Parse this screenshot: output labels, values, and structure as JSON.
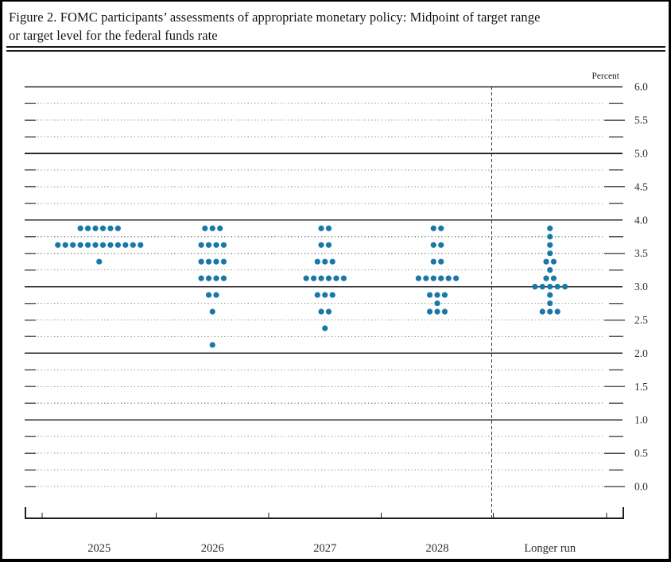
{
  "title": {
    "line1": "Figure 2. FOMC participants’ assessments of appropriate monetary policy: Midpoint of target range",
    "line2": "or target level for the federal funds rate"
  },
  "chart_data": {
    "type": "scatter",
    "subtype": "fomc-dot-plot",
    "title": "Figure 2. FOMC participants’ assessments of appropriate monetary policy: Midpoint of target range or target level for the federal funds rate",
    "unit_label": "Percent",
    "xlabel": "",
    "ylabel": "Percent",
    "ylim": [
      0.0,
      6.0
    ],
    "y_label_step": 0.5,
    "y_grid_step": 0.25,
    "grid": "dotted quarter-point lines, solid lines at whole percentages (1.0–6.0), dotted at 0.0",
    "legend_position": "none",
    "ytick_labels": [
      "6.0",
      "5.5",
      "5.0",
      "4.5",
      "4.0",
      "3.5",
      "3.0",
      "2.5",
      "2.0",
      "1.5",
      "1.0",
      "0.5",
      "0.0"
    ],
    "categories": [
      "2025",
      "2026",
      "2027",
      "2028",
      "Longer run"
    ],
    "divider_before_category": "Longer run",
    "dots_per_column": 19,
    "series": [
      {
        "category": "2025",
        "dots": [
          {
            "rate": 3.875,
            "count": 6
          },
          {
            "rate": 3.625,
            "count": 12
          },
          {
            "rate": 3.375,
            "count": 1
          }
        ]
      },
      {
        "category": "2026",
        "dots": [
          {
            "rate": 3.875,
            "count": 3
          },
          {
            "rate": 3.625,
            "count": 4
          },
          {
            "rate": 3.375,
            "count": 4
          },
          {
            "rate": 3.125,
            "count": 4
          },
          {
            "rate": 2.875,
            "count": 2
          },
          {
            "rate": 2.625,
            "count": 1
          },
          {
            "rate": 2.125,
            "count": 1
          }
        ]
      },
      {
        "category": "2027",
        "dots": [
          {
            "rate": 3.875,
            "count": 2
          },
          {
            "rate": 3.625,
            "count": 2
          },
          {
            "rate": 3.375,
            "count": 3
          },
          {
            "rate": 3.125,
            "count": 6
          },
          {
            "rate": 2.875,
            "count": 3
          },
          {
            "rate": 2.625,
            "count": 2
          },
          {
            "rate": 2.375,
            "count": 1
          }
        ]
      },
      {
        "category": "2028",
        "dots": [
          {
            "rate": 3.875,
            "count": 2
          },
          {
            "rate": 3.625,
            "count": 2
          },
          {
            "rate": 3.375,
            "count": 2
          },
          {
            "rate": 3.125,
            "count": 6
          },
          {
            "rate": 2.875,
            "count": 3
          },
          {
            "rate": 2.75,
            "count": 1
          },
          {
            "rate": 2.625,
            "count": 3
          }
        ]
      },
      {
        "category": "Longer run",
        "dots": [
          {
            "rate": 3.875,
            "count": 1
          },
          {
            "rate": 3.75,
            "count": 1
          },
          {
            "rate": 3.625,
            "count": 1
          },
          {
            "rate": 3.5,
            "count": 1
          },
          {
            "rate": 3.375,
            "count": 2
          },
          {
            "rate": 3.25,
            "count": 1
          },
          {
            "rate": 3.125,
            "count": 2
          },
          {
            "rate": 3.0,
            "count": 5
          },
          {
            "rate": 2.875,
            "count": 1
          },
          {
            "rate": 2.75,
            "count": 1
          },
          {
            "rate": 2.625,
            "count": 3
          }
        ]
      }
    ]
  },
  "colors": {
    "dot": "#1878a8",
    "solid_grid": "#2a2a2a",
    "dotted_grid": "#8f8f8f",
    "tick_dash": "#555555",
    "axis": "#1f1f1f",
    "divider": "#333333",
    "text": "#2b2b2b"
  }
}
